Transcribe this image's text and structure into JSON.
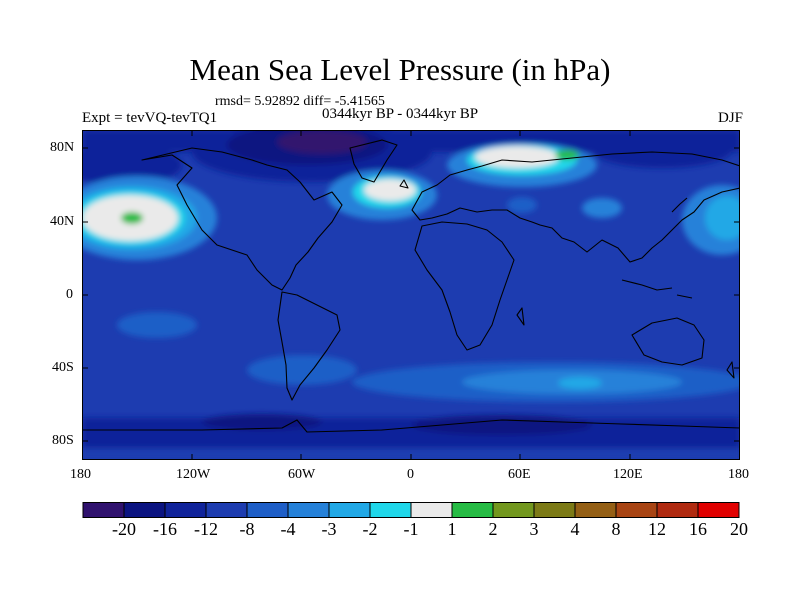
{
  "title": "Mean Sea Level Pressure (in hPa)",
  "stats": "rmsd= 5.92892 diff= -5.41565",
  "experiment": "Expt = tevVQ-tevTQ1",
  "period": "0344kyr BP - 0344kyr BP",
  "season": "DJF",
  "map": {
    "projection": "cylindrical equidistant",
    "lat_ticks": [
      "80N",
      "40N",
      "0",
      "40S",
      "80S"
    ],
    "lon_ticks": [
      "180",
      "120W",
      "60W",
      "0",
      "60E",
      "120E",
      "180"
    ],
    "background_level": "-8",
    "features": [
      {
        "region": "North Pacific (around 40N, 150W)",
        "level": "-1 to 1 with 1 to 2 core"
      },
      {
        "region": "North Atlantic (around 45N, 30W)",
        "level": "-1 to 1"
      },
      {
        "region": "Barents / Kara Sea (around 75N, 50E)",
        "level": "-1 to 1 with 1 to 2 patch"
      },
      {
        "region": "Southern Ocean band (around 50S)",
        "level": "-4 to -2"
      },
      {
        "region": "Arctic Canada / Greenland (around 75N, 60W)",
        "level": "-20 to -12"
      },
      {
        "region": "Antarctic coast (around 75S)",
        "level": "-12"
      }
    ]
  },
  "colorbar": {
    "colors": [
      "#30126e",
      "#0b1481",
      "#10239a",
      "#1d3cb0",
      "#1e5ec7",
      "#2581d9",
      "#21a8e6",
      "#20d7ea",
      "#eaeaea",
      "#26bb44",
      "#72971e",
      "#7c7a16",
      "#945f15",
      "#a84413",
      "#b02a10",
      "#e00000"
    ],
    "labels": [
      "-20",
      "-16",
      "-12",
      "-8",
      "-4",
      "-3",
      "-2",
      "-1",
      "1",
      "2",
      "3",
      "4",
      "8",
      "12",
      "16",
      "20"
    ]
  }
}
